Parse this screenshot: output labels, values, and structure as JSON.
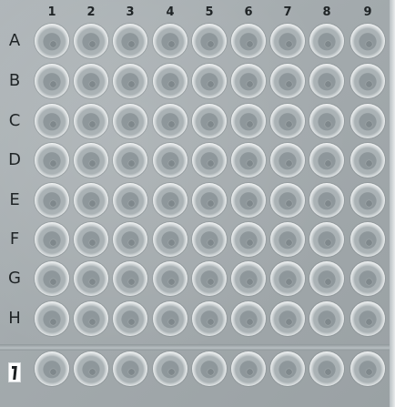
{
  "image": {
    "subject": "96-well microplate",
    "column_labels": [
      "1",
      "2",
      "3",
      "4",
      "5",
      "6",
      "7",
      "8",
      "9"
    ],
    "row_labels": [
      "A",
      "B",
      "C",
      "D",
      "E",
      "F",
      "G",
      "H"
    ],
    "extra_row_marker": "I",
    "colors": {
      "plate": "#a7aeb1",
      "well_rim": "#f4f6f6",
      "well_center": "#8e979b",
      "label_text": "#1f2426"
    }
  }
}
